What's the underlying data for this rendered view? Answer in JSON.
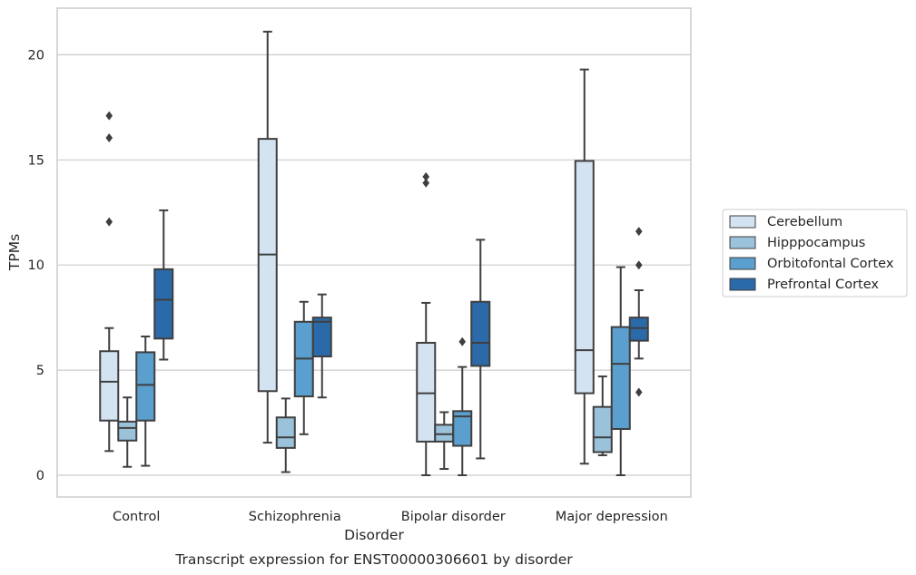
{
  "caption": "Transcript expression for ENST00000306601 by disorder",
  "chart_data": {
    "type": "boxplot",
    "xlabel": "Disorder",
    "ylabel": "TPMs",
    "ylim": [
      -1,
      22.2
    ],
    "yticks": [
      0,
      5,
      10,
      15,
      20
    ],
    "grid": "horizontal",
    "legend_position": "right",
    "categories": [
      "Control",
      "Schizophrenia",
      "Bipolar disorder",
      "Major depression"
    ],
    "series": [
      {
        "name": "Cerebellum",
        "color": "#d4e3f2",
        "boxes": [
          {
            "whislo": 1.15,
            "q1": 2.6,
            "med": 4.45,
            "q3": 5.9,
            "whishi": 7.0,
            "fliers": [
              12.05,
              16.05,
              17.1
            ]
          },
          {
            "whislo": 1.55,
            "q1": 4.0,
            "med": 10.5,
            "q3": 16.0,
            "whishi": 21.1,
            "fliers": []
          },
          {
            "whislo": 0.0,
            "q1": 1.6,
            "med": 3.9,
            "q3": 6.3,
            "whishi": 8.2,
            "fliers": [
              13.9,
              14.2
            ]
          },
          {
            "whislo": 0.55,
            "q1": 3.9,
            "med": 5.95,
            "q3": 14.95,
            "whishi": 19.3,
            "fliers": []
          }
        ]
      },
      {
        "name": "Hipppocampus",
        "color": "#9bc2db",
        "boxes": [
          {
            "whislo": 0.4,
            "q1": 1.65,
            "med": 2.25,
            "q3": 2.55,
            "whishi": 3.7,
            "fliers": []
          },
          {
            "whislo": 0.15,
            "q1": 1.3,
            "med": 1.8,
            "q3": 2.75,
            "whishi": 3.65,
            "fliers": []
          },
          {
            "whislo": 0.3,
            "q1": 1.6,
            "med": 1.95,
            "q3": 2.4,
            "whishi": 3.0,
            "fliers": []
          },
          {
            "whislo": 0.95,
            "q1": 1.1,
            "med": 1.8,
            "q3": 3.25,
            "whishi": 4.7,
            "fliers": []
          }
        ]
      },
      {
        "name": "Orbitofontal Cortex",
        "color": "#5a9fcd",
        "boxes": [
          {
            "whislo": 0.45,
            "q1": 2.6,
            "med": 4.3,
            "q3": 5.85,
            "whishi": 6.6,
            "fliers": []
          },
          {
            "whislo": 1.95,
            "q1": 3.75,
            "med": 5.55,
            "q3": 7.3,
            "whishi": 8.25,
            "fliers": []
          },
          {
            "whislo": 0.0,
            "q1": 1.4,
            "med": 2.8,
            "q3": 3.05,
            "whishi": 5.15,
            "fliers": [
              6.35
            ]
          },
          {
            "whislo": 0.0,
            "q1": 2.2,
            "med": 5.3,
            "q3": 7.05,
            "whishi": 9.9,
            "fliers": []
          }
        ]
      },
      {
        "name": "Prefrontal Cortex",
        "color": "#2b6aa9",
        "boxes": [
          {
            "whislo": 5.5,
            "q1": 6.5,
            "med": 8.35,
            "q3": 9.8,
            "whishi": 12.6,
            "fliers": []
          },
          {
            "whislo": 3.7,
            "q1": 5.65,
            "med": 7.3,
            "q3": 7.5,
            "whishi": 8.6,
            "fliers": []
          },
          {
            "whislo": 0.8,
            "q1": 5.2,
            "med": 6.3,
            "q3": 8.25,
            "whishi": 11.2,
            "fliers": []
          },
          {
            "whislo": 5.55,
            "q1": 6.4,
            "med": 7.0,
            "q3": 7.5,
            "whishi": 8.8,
            "fliers": [
              3.95,
              10.0,
              11.6
            ]
          }
        ]
      }
    ]
  }
}
